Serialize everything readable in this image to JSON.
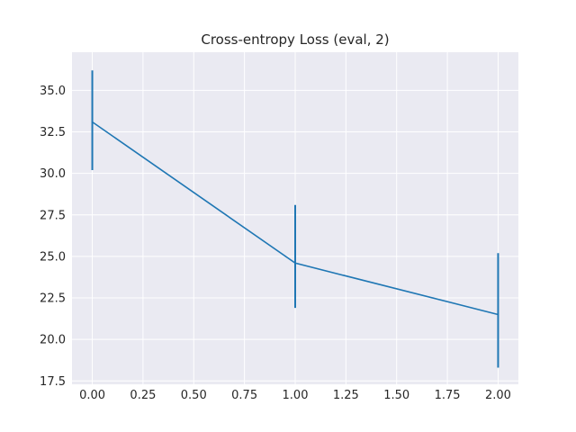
{
  "chart_data": {
    "type": "line",
    "title": "Cross-entropy Loss (eval, 2)",
    "xlabel": "",
    "ylabel": "",
    "xlim": [
      -0.1,
      2.1
    ],
    "ylim": [
      17.3,
      37.3
    ],
    "x_ticks": [
      0.0,
      0.25,
      0.5,
      0.75,
      1.0,
      1.25,
      1.5,
      1.75,
      2.0
    ],
    "x_tick_labels": [
      "0.00",
      "0.25",
      "0.50",
      "0.75",
      "1.00",
      "1.25",
      "1.50",
      "1.75",
      "2.00"
    ],
    "y_ticks": [
      17.5,
      20.0,
      22.5,
      25.0,
      27.5,
      30.0,
      32.5,
      35.0
    ],
    "y_tick_labels": [
      "17.5",
      "20.0",
      "22.5",
      "25.0",
      "27.5",
      "30.0",
      "32.5",
      "35.0"
    ],
    "grid": true,
    "background": "#eaeaf2",
    "series": [
      {
        "color": "#1f77b4",
        "x": [
          0,
          1,
          2
        ],
        "y": [
          33.1,
          24.6,
          21.5
        ],
        "y_low": [
          30.2,
          21.9,
          18.3
        ],
        "y_high": [
          36.2,
          28.1,
          25.2
        ]
      }
    ]
  }
}
